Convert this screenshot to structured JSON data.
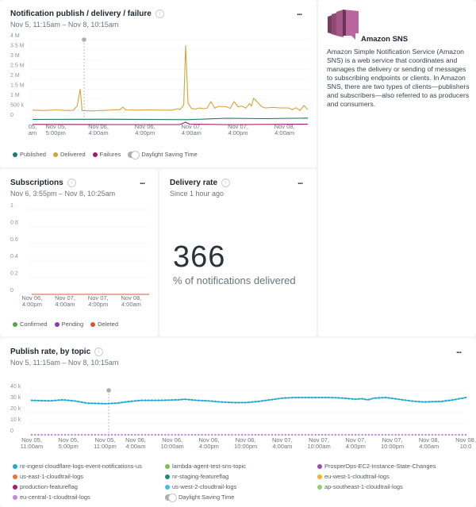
{
  "panels": {
    "notifications": {
      "title": "Notification publish / delivery / failure",
      "subtitle": "Nov 5, 11:15am – Nov 8, 10:15am",
      "more_label": "...",
      "info_icon": "info-icon",
      "legend": [
        {
          "label": "Published",
          "color": "#1f7a6b"
        },
        {
          "label": "Delivered",
          "color": "#d4a43c"
        },
        {
          "label": "Failures",
          "color": "#a0196b"
        }
      ],
      "dst_label": "Daylight Saving Time"
    },
    "subscriptions": {
      "title": "Subscriptions",
      "subtitle": "Nov 6, 3:55pm – Nov 8, 10:25am",
      "more_label": "...",
      "legend": [
        {
          "label": "Confirmed",
          "color": "#5aa54a"
        },
        {
          "label": "Pending",
          "color": "#8a3fa3"
        },
        {
          "label": "Deleted",
          "color": "#d8553a"
        }
      ]
    },
    "delivery_rate": {
      "title": "Delivery rate",
      "subtitle": "Since 1 hour ago",
      "more_label": "...",
      "value": "366",
      "value_label": "% of notifications delivered"
    },
    "sns_info": {
      "icon": "amazon-sns-logo",
      "title": "Amazon SNS",
      "description": "Amazon Simple Notification Service (Amazon SNS) is a web service that coordinates and manages the delivery or sending of messages to subscribing endpoints or clients. In Amazon SNS, there are two types of clients—publishers and subscribers—also referred to as producers and consumers."
    },
    "publish_rate": {
      "title": "Publish rate, by topic",
      "subtitle": "Nov 5, 11:15am – Nov 8, 10:15am",
      "more_label": "...",
      "legend": [
        {
          "label": "nr-ingest-cloudflare-logs-event-notifications-us",
          "color": "#20a8d0"
        },
        {
          "label": "lambda-agent-test-sns-topic",
          "color": "#7cc04a"
        },
        {
          "label": "ProsperOps-EC2-Instance-State-Changes",
          "color": "#9b4bbd"
        },
        {
          "label": "us-east-1-cloudtrail-logs",
          "color": "#f07040"
        },
        {
          "label": "nr-staging-featureflag",
          "color": "#1f8a7a"
        },
        {
          "label": "eu-west-1-cloudtrail-logs",
          "color": "#f5b22a"
        },
        {
          "label": "production-featureflag",
          "color": "#b0186e"
        },
        {
          "label": "us-west-2-cloudtrail-logs",
          "color": "#3cc0e8"
        },
        {
          "label": "ap-southeast-1-cloudtrail-logs",
          "color": "#8fd06a"
        },
        {
          "label": "eu-central-1-cloudtrail-logs",
          "color": "#c287de"
        }
      ],
      "dst_label": "Daylight Saving Time"
    }
  },
  "chart_data": [
    {
      "type": "line",
      "title": "Notification publish / delivery / failure",
      "ylim": [
        0,
        4000000
      ],
      "yticks": [
        "4 M",
        "3.5 M",
        "3 M",
        "2.5 M",
        "2 M",
        "1.5 M",
        "1 M",
        "500 k",
        "0"
      ],
      "ytick_values": [
        4000000,
        3500000,
        3000000,
        2500000,
        2000000,
        1500000,
        1000000,
        500000,
        0
      ],
      "xticks": [
        {
          "label": "05,\nam",
          "t": 0
        },
        {
          "label": "Nov 05,\n5:00pm",
          "t": 6
        },
        {
          "label": "Nov 06,\n4:00am",
          "t": 17
        },
        {
          "label": "Nov 06,\n4:00pm",
          "t": 29
        },
        {
          "label": "Nov 07,\n4:00am",
          "t": 41
        },
        {
          "label": "Nov 07,\n4:00pm",
          "t": 53
        },
        {
          "label": "Nov 08,\n4:00am",
          "t": 65
        }
      ],
      "x_range_hours": [
        -0.2,
        71
      ],
      "marker_hour": 13.3,
      "series": [
        {
          "name": "Delivered",
          "color": "#d4a43c",
          "points": [
            [
              0,
              450000
            ],
            [
              3,
              430000
            ],
            [
              6,
              460000
            ],
            [
              9,
              430000
            ],
            [
              10.5,
              440000
            ],
            [
              11.5,
              650000
            ],
            [
              12.3,
              1500000
            ],
            [
              12.8,
              430000
            ],
            [
              15,
              410000
            ],
            [
              18,
              430000
            ],
            [
              21,
              460000
            ],
            [
              22.5,
              470000
            ],
            [
              23.3,
              600000
            ],
            [
              24,
              460000
            ],
            [
              27,
              450000
            ],
            [
              30,
              460000
            ],
            [
              33,
              450000
            ],
            [
              36,
              450000
            ],
            [
              37.5,
              520000
            ],
            [
              38,
              470000
            ],
            [
              39,
              700000
            ],
            [
              39.5,
              3700000
            ],
            [
              40.1,
              800000
            ],
            [
              41,
              530000
            ],
            [
              42,
              500000
            ],
            [
              43,
              560000
            ],
            [
              44,
              520000
            ],
            [
              45,
              540000
            ],
            [
              46,
              880000
            ],
            [
              47,
              550000
            ],
            [
              48,
              640000
            ],
            [
              50,
              620000
            ],
            [
              51,
              540000
            ],
            [
              52,
              880000
            ],
            [
              53,
              620000
            ],
            [
              54,
              650000
            ],
            [
              55,
              550000
            ],
            [
              56,
              780000
            ],
            [
              56.5,
              650000
            ],
            [
              57,
              1050000
            ],
            [
              58,
              850000
            ],
            [
              59,
              640000
            ],
            [
              60,
              560000
            ],
            [
              62,
              590000
            ],
            [
              64,
              560000
            ],
            [
              66,
              560000
            ],
            [
              67,
              470000
            ],
            [
              68,
              570000
            ],
            [
              69,
              430000
            ],
            [
              70,
              680000
            ],
            [
              71,
              470000
            ]
          ]
        },
        {
          "name": "Published",
          "color": "#1f7a6b",
          "points": [
            [
              0,
              -20000
            ],
            [
              20,
              -10000
            ],
            [
              40,
              -30000
            ],
            [
              50,
              40000
            ],
            [
              60,
              20000
            ],
            [
              71,
              50000
            ]
          ]
        },
        {
          "name": "Failures",
          "color": "#a0196b",
          "points": [
            [
              0,
              -270000
            ],
            [
              20,
              -280000
            ],
            [
              38,
              -280000
            ],
            [
              39.5,
              -160000
            ],
            [
              40.5,
              -260000
            ],
            [
              50,
              -280000
            ],
            [
              71,
              -260000
            ]
          ]
        }
      ],
      "legend_position": "bottom-left"
    },
    {
      "type": "line",
      "title": "Subscriptions",
      "ylim": [
        0,
        1
      ],
      "yticks": [
        "1",
        "0.8",
        "0.6",
        "0.4",
        "0.2",
        "0"
      ],
      "ytick_values": [
        1,
        0.8,
        0.6,
        0.4,
        0.2,
        0
      ],
      "xticks": [
        {
          "label": "Nov 06,\n4:00pm",
          "t": 0
        },
        {
          "label": "Nov 07,\n4:00am",
          "t": 12
        },
        {
          "label": "Nov 07,\n4:00pm",
          "t": 24
        },
        {
          "label": "Nov 08,\n4:00am",
          "t": 36
        }
      ],
      "x_range_hours": [
        -0.1,
        42.5
      ],
      "series": [
        {
          "name": "Deleted",
          "color": "#d8553a",
          "points": [
            [
              -0.1,
              0
            ],
            [
              42.5,
              0
            ]
          ]
        }
      ],
      "legend_position": "bottom-left"
    },
    {
      "type": "line",
      "title": "Publish rate, by topic",
      "ylim": [
        0,
        40000
      ],
      "yticks": [
        "40 k",
        "30 k",
        "20 k",
        "10 k",
        "0"
      ],
      "ytick_values": [
        40000,
        30000,
        20000,
        10000,
        0
      ],
      "xticks": [
        {
          "label": "Nov 05,\n11:00am",
          "t": 0
        },
        {
          "label": "Nov 05,\n5:00pm",
          "t": 6
        },
        {
          "label": "Nov 05,\n11:00pm",
          "t": 12
        },
        {
          "label": "Nov 06,\n4:00am",
          "t": 17
        },
        {
          "label": "Nov 06,\n10:00am",
          "t": 23
        },
        {
          "label": "Nov 06,\n4:00pm",
          "t": 29
        },
        {
          "label": "Nov 06,\n10:00pm",
          "t": 35
        },
        {
          "label": "Nov 07,\n4:00am",
          "t": 41
        },
        {
          "label": "Nov 07,\n10:00am",
          "t": 47
        },
        {
          "label": "Nov 07,\n4:00pm",
          "t": 53
        },
        {
          "label": "Nov 07,\n10:00pm",
          "t": 59
        },
        {
          "label": "Nov 08,\n4:00am",
          "t": 65
        },
        {
          "label": "Nov 08,\n10:0",
          "t": 71
        }
      ],
      "x_range_hours": [
        0,
        71
      ],
      "marker_hour": 12.6,
      "series": [
        {
          "name": "nr-ingest-cloudflare-logs-event-notifications-us",
          "color": "#20a8d0",
          "points": [
            [
              0,
              31000
            ],
            [
              3,
              30500
            ],
            [
              5,
              31500
            ],
            [
              7,
              30500
            ],
            [
              9,
              28500
            ],
            [
              12,
              28000
            ],
            [
              14,
              28500
            ],
            [
              16,
              30000
            ],
            [
              18,
              31000
            ],
            [
              21,
              31000
            ],
            [
              24,
              31500
            ],
            [
              25,
              32000
            ],
            [
              27,
              31000
            ],
            [
              29,
              30500
            ],
            [
              31,
              29500
            ],
            [
              33,
              29000
            ],
            [
              35,
              29000
            ],
            [
              37,
              30000
            ],
            [
              39,
              31500
            ],
            [
              41,
              33000
            ],
            [
              43,
              33500
            ],
            [
              46,
              33500
            ],
            [
              49,
              33500
            ],
            [
              51,
              33000
            ],
            [
              53,
              32000
            ],
            [
              54,
              32500
            ],
            [
              55,
              31500
            ],
            [
              56,
              33000
            ],
            [
              58,
              33500
            ],
            [
              60,
              32000
            ],
            [
              62,
              30500
            ],
            [
              64,
              29500
            ],
            [
              67,
              30000
            ],
            [
              69,
              31500
            ],
            [
              71,
              33500
            ],
            [
              74,
              34000
            ],
            [
              77,
              33500
            ]
          ]
        },
        {
          "name": "eu-central-1-cloudtrail-logs",
          "color": "#c287de",
          "points": [
            [
              0,
              0
            ],
            [
              77,
              0
            ]
          ]
        }
      ],
      "legend_position": "bottom"
    }
  ]
}
